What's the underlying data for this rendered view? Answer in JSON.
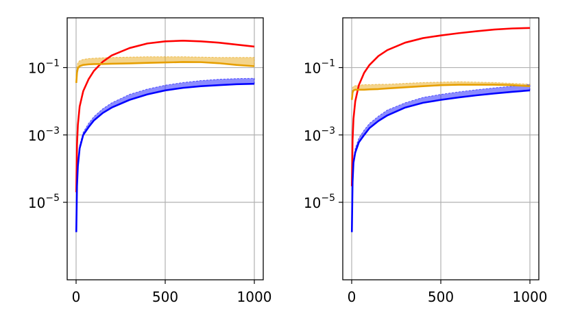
{
  "chart_data": [
    {
      "type": "line",
      "title": "",
      "xlabel": "",
      "ylabel": "",
      "xlim": [
        -50,
        1050
      ],
      "ylim": [
        5e-08,
        3
      ],
      "yscale": "log",
      "grid": true,
      "xticks": [
        0,
        500,
        1000
      ],
      "xtick_labels": [
        "0",
        "500",
        "1000"
      ],
      "yticks": [
        1e-05,
        0.001,
        0.1
      ],
      "ytick_labels": [
        {
          "base": "10",
          "exp": "−5"
        },
        {
          "base": "10",
          "exp": "−3"
        },
        {
          "base": "10",
          "exp": "−1"
        }
      ],
      "series": [
        {
          "color": "#ff0000",
          "x": [
            1,
            5,
            10,
            20,
            40,
            70,
            100,
            150,
            200,
            300,
            400,
            500,
            600,
            700,
            800,
            900,
            1000
          ],
          "y": [
            2e-05,
            0.0005,
            0.002,
            0.007,
            0.02,
            0.045,
            0.08,
            0.15,
            0.23,
            0.38,
            0.52,
            0.6,
            0.63,
            0.6,
            0.55,
            0.48,
            0.42
          ]
        },
        {
          "color": "#e69f00",
          "x": [
            1,
            5,
            10,
            20,
            40,
            70,
            100,
            150,
            200,
            300,
            400,
            500,
            600,
            700,
            800,
            900,
            1000
          ],
          "y": [
            0.035,
            0.07,
            0.095,
            0.11,
            0.12,
            0.125,
            0.127,
            0.128,
            0.13,
            0.133,
            0.138,
            0.142,
            0.146,
            0.145,
            0.135,
            0.12,
            0.11
          ],
          "band_upper": [
            0.06,
            0.11,
            0.14,
            0.16,
            0.175,
            0.185,
            0.19,
            0.195,
            0.2,
            0.205,
            0.21,
            0.21,
            0.21,
            0.205,
            0.2,
            0.2,
            0.2
          ]
        },
        {
          "color": "#0000ff",
          "x": [
            1,
            5,
            10,
            20,
            40,
            70,
            100,
            150,
            200,
            300,
            400,
            500,
            600,
            700,
            800,
            900,
            1000
          ],
          "y": [
            1.3e-06,
            3e-05,
            0.00012,
            0.0004,
            0.001,
            0.0017,
            0.0027,
            0.0045,
            0.0065,
            0.011,
            0.016,
            0.021,
            0.025,
            0.028,
            0.03,
            0.032,
            0.033
          ],
          "band_upper": [
            1.3e-06,
            3.5e-05,
            0.00015,
            0.0005,
            0.0012,
            0.0022,
            0.0035,
            0.006,
            0.009,
            0.016,
            0.023,
            0.03,
            0.036,
            0.041,
            0.045,
            0.047,
            0.048
          ]
        }
      ]
    },
    {
      "type": "line",
      "title": "",
      "xlabel": "",
      "ylabel": "",
      "xlim": [
        -50,
        1050
      ],
      "ylim": [
        5e-08,
        3
      ],
      "yscale": "log",
      "grid": true,
      "xticks": [
        0,
        500,
        1000
      ],
      "xtick_labels": [
        "0",
        "500",
        "1000"
      ],
      "yticks": [
        1e-05,
        0.001,
        0.1
      ],
      "ytick_labels": [
        {
          "base": "10",
          "exp": "−5"
        },
        {
          "base": "10",
          "exp": "−3"
        },
        {
          "base": "10",
          "exp": "−1"
        }
      ],
      "series": [
        {
          "color": "#ff0000",
          "x": [
            1,
            5,
            10,
            20,
            40,
            70,
            100,
            150,
            200,
            300,
            400,
            500,
            600,
            700,
            800,
            900,
            1000
          ],
          "y": [
            3e-05,
            0.0007,
            0.003,
            0.01,
            0.03,
            0.07,
            0.12,
            0.22,
            0.33,
            0.55,
            0.75,
            0.9,
            1.05,
            1.2,
            1.35,
            1.45,
            1.5
          ]
        },
        {
          "color": "#e69f00",
          "x": [
            1,
            5,
            10,
            20,
            40,
            70,
            100,
            150,
            200,
            300,
            400,
            500,
            600,
            700,
            800,
            900,
            1000
          ],
          "y": [
            0.011,
            0.018,
            0.021,
            0.022,
            0.022,
            0.022,
            0.0225,
            0.023,
            0.024,
            0.026,
            0.028,
            0.03,
            0.031,
            0.031,
            0.031,
            0.03,
            0.028
          ],
          "band_upper": [
            0.015,
            0.025,
            0.028,
            0.029,
            0.03,
            0.031,
            0.031,
            0.032,
            0.032,
            0.034,
            0.036,
            0.037,
            0.038,
            0.037,
            0.036,
            0.034,
            0.032
          ]
        },
        {
          "color": "#0000ff",
          "x": [
            1,
            5,
            10,
            20,
            40,
            70,
            100,
            150,
            200,
            300,
            400,
            500,
            600,
            700,
            800,
            900,
            1000
          ],
          "y": [
            1.3e-06,
            4e-05,
            0.00015,
            0.0003,
            0.0006,
            0.001,
            0.0016,
            0.0026,
            0.0038,
            0.0065,
            0.009,
            0.011,
            0.013,
            0.015,
            0.017,
            0.019,
            0.021
          ],
          "band_upper": [
            1.3e-06,
            5e-05,
            0.0002,
            0.0004,
            0.0008,
            0.0014,
            0.0022,
            0.0036,
            0.0055,
            0.009,
            0.013,
            0.016,
            0.019,
            0.022,
            0.025,
            0.028,
            0.031
          ]
        }
      ]
    }
  ]
}
